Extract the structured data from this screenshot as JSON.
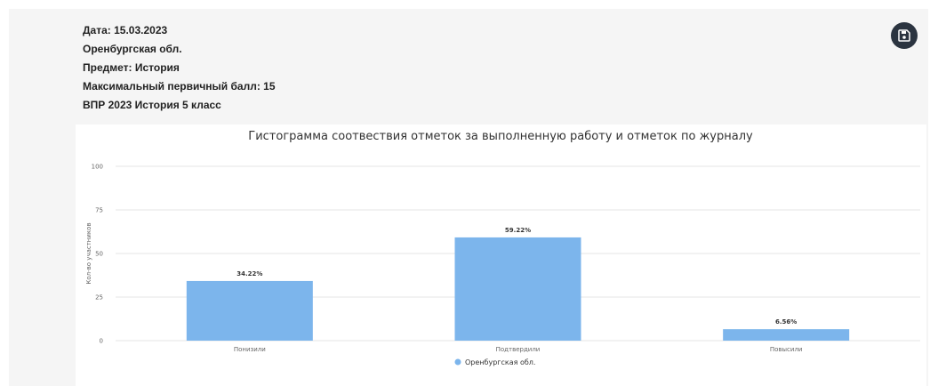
{
  "info": {
    "date": "Дата: 15.03.2023",
    "region": "Оренбургская обл.",
    "subject": "Предмет: История",
    "max_score": "Максимальный первичный балл: 15",
    "exam": "ВПР 2023 История 5 класс"
  },
  "save_button": {
    "icon": "save-icon",
    "bg_color": "#2b3440"
  },
  "chart_data": {
    "type": "bar",
    "title": "Гистограмма соотвествия отметок за выполненную работу и отметок по журналу",
    "ylabel": "Кол-во участников",
    "xlabel": "",
    "ylim": [
      0,
      100
    ],
    "yticks": [
      "0",
      "25",
      "50",
      "75",
      "100"
    ],
    "categories": [
      "Понизили",
      "Подтвердили",
      "Повысили"
    ],
    "series": [
      {
        "name": "Оренбургская обл.",
        "values": [
          34.22,
          59.22,
          6.56
        ],
        "labels": [
          "34.22%",
          "59.22%",
          "6.56%"
        ],
        "color": "#7cb5ec"
      }
    ],
    "grid": true,
    "legend": "bottom-center"
  }
}
